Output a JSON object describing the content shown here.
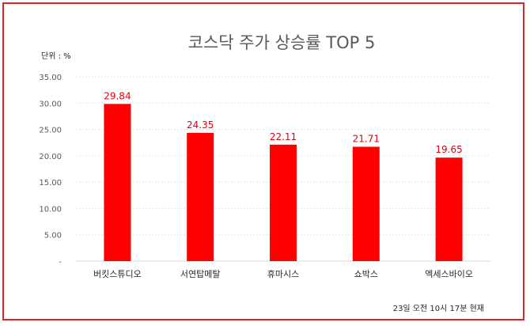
{
  "chart_data": {
    "type": "bar",
    "title": "코스닥 주가 상승률 TOP 5",
    "unit_label": "단위 : %",
    "categories": [
      "버킷스튜디오",
      "서연탑메탈",
      "휴마시스",
      "쇼박스",
      "엑세스바이오"
    ],
    "values": [
      29.84,
      24.35,
      22.11,
      21.71,
      19.65
    ],
    "data_labels": [
      "29.84",
      "24.35",
      "22.11",
      "21.71",
      "19.65"
    ],
    "y_ticks": [
      0,
      5,
      10,
      15,
      20,
      25,
      30,
      35
    ],
    "y_tick_labels": [
      "-",
      "5.00",
      "10.00",
      "15.00",
      "20.00",
      "25.00",
      "30.00",
      "35.00"
    ],
    "ylim": [
      0,
      35
    ],
    "grid": true,
    "xlabel": "",
    "ylabel": "",
    "bar_color": "#ff0000",
    "label_color": "#e3000f",
    "footnote": "23일 오전 10시 17분 현재"
  },
  "frame_color": "#d9262b"
}
